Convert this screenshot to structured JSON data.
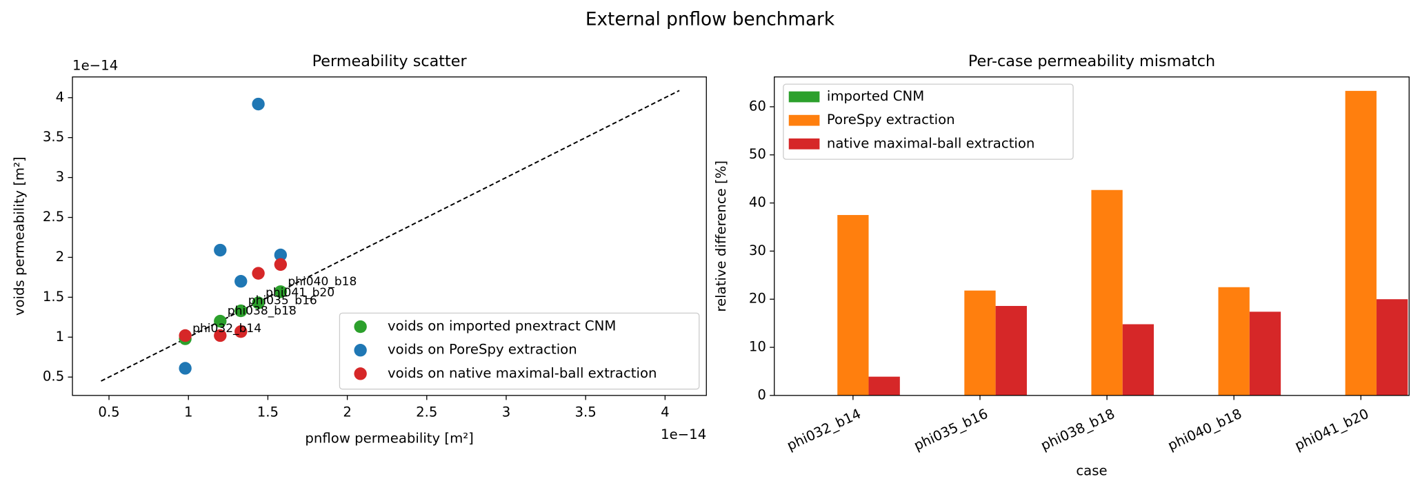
{
  "title": "External pnflow benchmark",
  "chart_data": [
    {
      "type": "scatter",
      "title": "Permeability scatter",
      "x_label": "pnflow permeability [m²]",
      "y_label": "voids permeability [m²]",
      "x_offset_label": "1e−14",
      "y_offset_label": "1e−14",
      "xlim": [
        0.27,
        4.26
      ],
      "ylim": [
        0.27,
        4.26
      ],
      "xticks": [
        0.5,
        1.0,
        1.5,
        2.0,
        2.5,
        3.0,
        3.5,
        4.0
      ],
      "yticks": [
        0.5,
        1.0,
        1.5,
        2.0,
        2.5,
        3.0,
        3.5,
        4.0
      ],
      "reference_line": {
        "x": [
          0.45,
          4.09
        ],
        "y": [
          0.45,
          4.09
        ],
        "color": "#000000"
      },
      "legend": "lower right",
      "point_labels": [
        "phi032_b14",
        "phi035_b16",
        "phi038_b18",
        "phi040_b18",
        "phi041_b20"
      ],
      "series": [
        {
          "name": "voids on imported pnextract CNM",
          "color": "#2ca02c",
          "x": [
            0.98,
            1.33,
            1.2,
            1.58,
            1.44
          ],
          "values": [
            0.98,
            1.33,
            1.2,
            1.57,
            1.43
          ]
        },
        {
          "name": "voids on PoreSpy extraction",
          "color": "#1f77b4",
          "x": [
            0.98,
            1.33,
            1.2,
            1.58,
            1.44
          ],
          "values": [
            0.61,
            1.7,
            2.09,
            2.03,
            3.92
          ]
        },
        {
          "name": "voids on native maximal-ball extraction",
          "color": "#d62728",
          "x": [
            0.98,
            1.33,
            1.2,
            1.58,
            1.44
          ],
          "values": [
            1.02,
            1.07,
            1.02,
            1.91,
            1.8
          ]
        }
      ]
    },
    {
      "type": "bar",
      "title": "Per-case permeability mismatch",
      "x_label": "case",
      "y_label": "relative difference [%]",
      "categories": [
        "phi032_b14",
        "phi035_b16",
        "phi038_b18",
        "phi040_b18",
        "phi041_b20"
      ],
      "ylim": [
        0,
        66.2
      ],
      "yticks": [
        0,
        10,
        20,
        30,
        40,
        50,
        60
      ],
      "legend": "upper left",
      "series": [
        {
          "name": "imported CNM",
          "color": "#2ca02c",
          "values": [
            0,
            0,
            0,
            0,
            0
          ]
        },
        {
          "name": "PoreSpy extraction",
          "color": "#ff7f0e",
          "values": [
            37.5,
            21.8,
            42.7,
            22.5,
            63.3
          ]
        },
        {
          "name": "native maximal-ball extraction",
          "color": "#d62728",
          "values": [
            3.9,
            18.6,
            14.8,
            17.4,
            20.0
          ]
        }
      ]
    }
  ]
}
